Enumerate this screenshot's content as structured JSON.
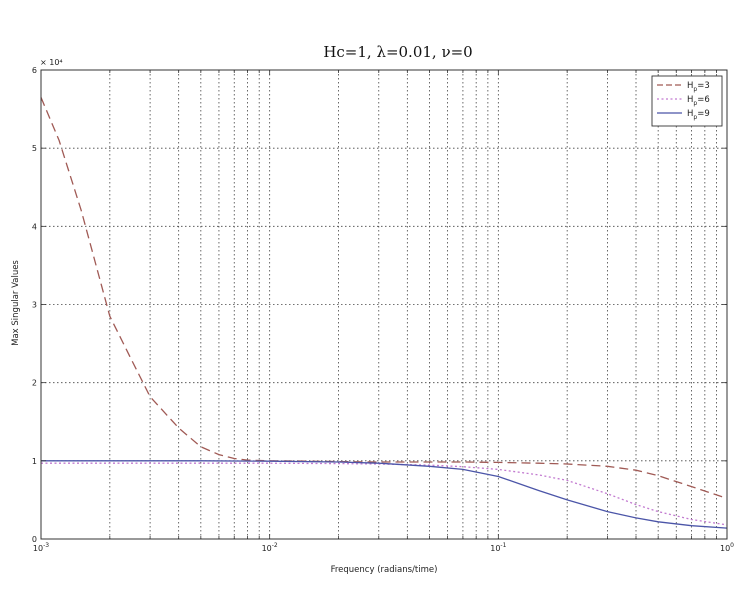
{
  "chart_data": {
    "type": "line",
    "title": "Hc=1, λ=0.01, ν=0",
    "xlabel": "Frequency (radians/time)",
    "ylabel": "Max Singular Values",
    "x_scale": "log",
    "xlim": [
      0.001,
      1
    ],
    "ylim": [
      0,
      60000
    ],
    "y_multiplier_label": "× 10⁴",
    "x_tick_labels": [
      {
        "value": 0.001,
        "base": "10",
        "exp": "-3"
      },
      {
        "value": 0.01,
        "base": "10",
        "exp": "-2"
      },
      {
        "value": 0.1,
        "base": "10",
        "exp": "-1"
      },
      {
        "value": 1,
        "base": "10",
        "exp": "0"
      }
    ],
    "y_ticks": [
      0,
      10000,
      20000,
      30000,
      40000,
      50000,
      60000
    ],
    "y_tick_labels": [
      "0",
      "1",
      "2",
      "3",
      "4",
      "5",
      "6"
    ],
    "grid": true,
    "legend_position": "top-right",
    "series": [
      {
        "name": "Hp=3",
        "legend_main": "H",
        "legend_sub": "p",
        "legend_tail": "=3",
        "color": "#a05a55",
        "dash": "9,5",
        "x": [
          0.001,
          0.0012,
          0.0015,
          0.002,
          0.0025,
          0.003,
          0.004,
          0.005,
          0.006,
          0.007,
          0.008,
          0.01,
          0.015,
          0.02,
          0.03,
          0.05,
          0.07,
          0.1,
          0.15,
          0.2,
          0.3,
          0.4,
          0.5,
          0.7,
          1.0
        ],
        "y": [
          56500,
          51000,
          42000,
          28500,
          22800,
          18200,
          14200,
          11800,
          10800,
          10300,
          10100,
          10000,
          9950,
          9900,
          9850,
          9850,
          9850,
          9800,
          9700,
          9600,
          9300,
          8800,
          8100,
          6700,
          5200
        ]
      },
      {
        "name": "Hp=6",
        "legend_main": "H",
        "legend_sub": "p",
        "legend_tail": "=6",
        "color": "#c27ad0",
        "dash": "2,2.5",
        "x": [
          0.001,
          0.002,
          0.005,
          0.01,
          0.02,
          0.03,
          0.05,
          0.07,
          0.1,
          0.15,
          0.2,
          0.3,
          0.4,
          0.5,
          0.7,
          1.0
        ],
        "y": [
          9700,
          9700,
          9700,
          9700,
          9650,
          9600,
          9450,
          9250,
          8900,
          8200,
          7500,
          5800,
          4400,
          3500,
          2500,
          1800
        ]
      },
      {
        "name": "Hp=9",
        "legend_main": "H",
        "legend_sub": "p",
        "legend_tail": "=9",
        "color": "#4b55a8",
        "dash": "",
        "x": [
          0.001,
          0.002,
          0.005,
          0.01,
          0.02,
          0.03,
          0.05,
          0.07,
          0.1,
          0.15,
          0.2,
          0.3,
          0.4,
          0.5,
          0.7,
          1.0
        ],
        "y": [
          10000,
          10000,
          10000,
          9950,
          9850,
          9700,
          9300,
          8900,
          8000,
          6200,
          5000,
          3500,
          2700,
          2200,
          1700,
          1400
        ]
      }
    ]
  }
}
